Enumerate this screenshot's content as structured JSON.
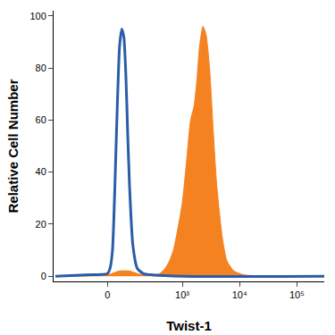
{
  "chart_data": {
    "type": "area",
    "x_label": "Twist-1",
    "y_label": "Relative Cell Number",
    "xlim": [
      -430,
      300000
    ],
    "xticks": [
      0,
      {
        "value": 1000,
        "label": "10³"
      },
      {
        "value": 10000,
        "label": "10⁴"
      },
      {
        "value": 100000,
        "label": "10⁵"
      }
    ],
    "ylim": [
      -2,
      102
    ],
    "yticks": [
      0,
      20,
      40,
      60,
      80,
      100
    ],
    "grid": false,
    "series": [
      {
        "type": "area",
        "color": "#f58220",
        "x": [
          -400,
          0,
          50,
          100,
          150,
          200,
          300,
          400,
          500,
          600,
          700,
          800,
          1000,
          1200,
          1400,
          1600,
          1800,
          2000,
          2300,
          2600,
          3000,
          3500,
          4000,
          5000,
          6000,
          8000,
          12000,
          300000
        ],
        "values": [
          0,
          0.5,
          2,
          2,
          1,
          0.5,
          0.5,
          1,
          3,
          6,
          10,
          16,
          28,
          45,
          60,
          65,
          75,
          88,
          96,
          93,
          80,
          55,
          35,
          15,
          6,
          2,
          0.5,
          0
        ]
      },
      {
        "type": "line",
        "color": "#2a5caa",
        "x": [
          -400,
          -100,
          0,
          10,
          20,
          30,
          40,
          50,
          60,
          70,
          80,
          90,
          100,
          120,
          150,
          200,
          300,
          1000,
          300000
        ],
        "values": [
          0,
          0.5,
          1,
          3,
          10,
          35,
          65,
          88,
          95,
          92,
          78,
          55,
          35,
          12,
          3,
          1,
          0.5,
          0,
          0
        ]
      }
    ]
  }
}
